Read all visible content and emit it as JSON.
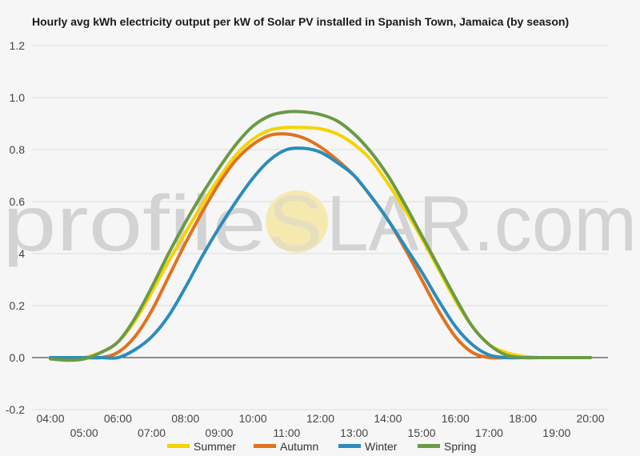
{
  "chart_data": {
    "type": "line",
    "title": "Hourly avg kWh electricity output per kW of Solar PV installed in Spanish Town, Jamaica (by season)",
    "watermark": {
      "left": "profile",
      "circle_letter": "S",
      "right": "LAR.com",
      "sun_color": "#f6e9b0"
    },
    "xlabel": "",
    "ylabel": "",
    "ylim": [
      -0.2,
      1.2
    ],
    "yticks": [
      1.2,
      1.0,
      0.8,
      0.6,
      0.4,
      0.2,
      0.0,
      -0.2
    ],
    "ytick_labels": [
      "1.2",
      "1.0",
      "0.8",
      "0.6",
      "0.4",
      "0.2",
      "0.0",
      "-0.2"
    ],
    "xticks_upper": [
      "04:00",
      "06:00",
      "08:00",
      "10:00",
      "12:00",
      "14:00",
      "16:00",
      "18:00",
      "20:00"
    ],
    "xticks_lower": [
      "05:00",
      "07:00",
      "09:00",
      "11:00",
      "13:00",
      "15:00",
      "17:00",
      "19:00"
    ],
    "x": [
      4,
      4.5,
      5,
      5.5,
      6,
      6.5,
      7,
      7.5,
      8,
      8.5,
      9,
      9.5,
      10,
      10.5,
      11,
      11.5,
      12,
      12.5,
      13,
      13.5,
      14,
      14.5,
      15,
      15.5,
      16,
      16.5,
      17,
      17.5,
      18,
      18.5,
      19,
      19.5,
      20
    ],
    "grid": true,
    "legend_position": "bottom",
    "series": [
      {
        "name": "Summer",
        "color": "#f5d300",
        "values": [
          0.0,
          -0.01,
          0.0,
          0.02,
          0.06,
          0.14,
          0.25,
          0.37,
          0.48,
          0.59,
          0.69,
          0.78,
          0.84,
          0.875,
          0.885,
          0.885,
          0.88,
          0.86,
          0.82,
          0.76,
          0.67,
          0.57,
          0.46,
          0.34,
          0.22,
          0.12,
          0.05,
          0.02,
          0.005,
          0.0,
          0.0,
          0.0,
          0.0
        ]
      },
      {
        "name": "Autumn",
        "color": "#e2711d",
        "values": [
          0.0,
          0.0,
          0.0,
          0.0,
          0.02,
          0.08,
          0.18,
          0.31,
          0.44,
          0.56,
          0.67,
          0.76,
          0.82,
          0.855,
          0.86,
          0.845,
          0.81,
          0.76,
          0.7,
          0.62,
          0.53,
          0.42,
          0.3,
          0.18,
          0.08,
          0.02,
          0.0,
          0.0,
          0.0,
          0.0,
          0.0,
          0.0,
          0.0
        ]
      },
      {
        "name": "Winter",
        "color": "#2b8cbe",
        "values": [
          0.0,
          0.0,
          0.0,
          0.0,
          0.0,
          0.03,
          0.08,
          0.16,
          0.27,
          0.39,
          0.5,
          0.6,
          0.69,
          0.76,
          0.8,
          0.805,
          0.79,
          0.75,
          0.7,
          0.62,
          0.53,
          0.43,
          0.33,
          0.22,
          0.12,
          0.05,
          0.01,
          0.0,
          0.0,
          0.0,
          0.0,
          0.0,
          0.0
        ]
      },
      {
        "name": "Spring",
        "color": "#6a9a46",
        "values": [
          -0.005,
          -0.01,
          -0.005,
          0.02,
          0.06,
          0.15,
          0.27,
          0.4,
          0.52,
          0.63,
          0.73,
          0.82,
          0.89,
          0.93,
          0.945,
          0.945,
          0.935,
          0.91,
          0.86,
          0.79,
          0.7,
          0.59,
          0.47,
          0.35,
          0.23,
          0.12,
          0.05,
          0.01,
          0.0,
          0.0,
          0.0,
          0.0,
          0.0
        ]
      }
    ]
  }
}
